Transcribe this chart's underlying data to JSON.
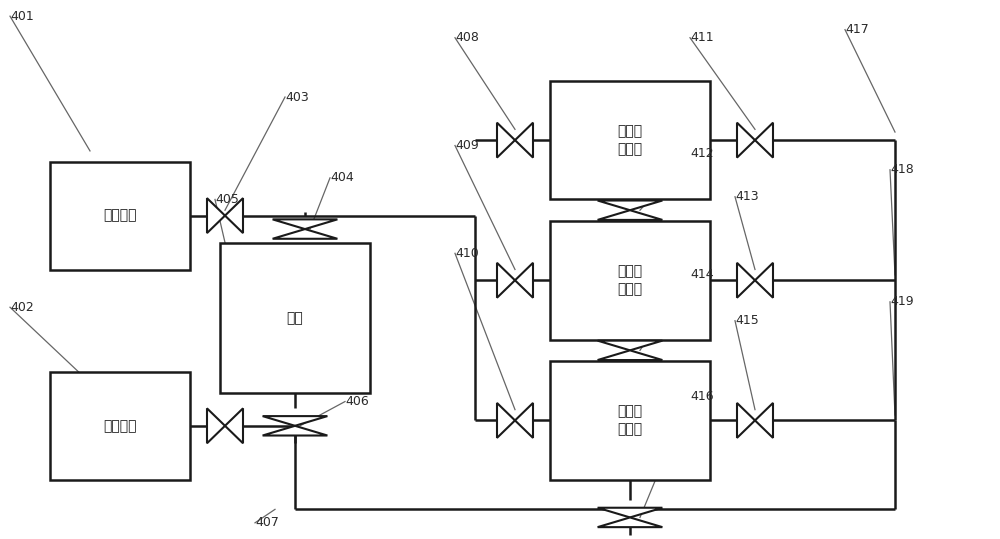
{
  "bg_color": "#ffffff",
  "line_color": "#1a1a1a",
  "lw": 1.8,
  "valve_size": 0.018,
  "boxes": {
    "hot": [
      0.05,
      0.5,
      0.14,
      0.2
    ],
    "cold": [
      0.05,
      0.11,
      0.14,
      0.2
    ],
    "tank": [
      0.22,
      0.27,
      0.15,
      0.28
    ],
    "s1": [
      0.55,
      0.63,
      0.16,
      0.22
    ],
    "s2": [
      0.55,
      0.37,
      0.16,
      0.22
    ],
    "s3": [
      0.55,
      0.11,
      0.16,
      0.22
    ]
  },
  "box_labels": {
    "hot": "系统热源",
    "cold": "系统冷源",
    "tank": "水箱",
    "s1": "第一储\n能单元",
    "s2": "第二储\n能单元",
    "s3": "第三储\n能单元"
  },
  "font_size_box": 10,
  "font_size_label": 9,
  "label_color": "#2a2a2a"
}
